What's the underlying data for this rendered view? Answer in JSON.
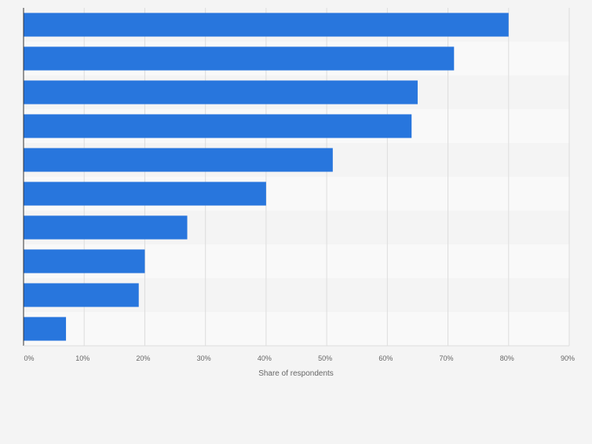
{
  "chart_data": {
    "type": "bar",
    "orientation": "horizontal",
    "categories": [
      "",
      "",
      "",
      "",
      "",
      "",
      "",
      "",
      "",
      ""
    ],
    "values": [
      80,
      71,
      65,
      64,
      51,
      40,
      27,
      20,
      19,
      7
    ],
    "title": "",
    "xlabel": "Share of respondents",
    "ylabel": "",
    "xlim": [
      0,
      90
    ],
    "xticks": [
      0,
      10,
      20,
      30,
      40,
      50,
      60,
      70,
      80,
      90
    ],
    "tick_labels": [
      "0%",
      "10%",
      "20%",
      "30%",
      "40%",
      "50%",
      "60%",
      "70%",
      "80%",
      "90%"
    ],
    "grid": true,
    "legend": "none",
    "colors": {
      "bar": "#2876dd",
      "band_dark": "#f4f4f4",
      "band_light": "#f9f9f9",
      "gridline": "#dddddd",
      "axis": "#333333",
      "tick_text": "#666666"
    }
  }
}
